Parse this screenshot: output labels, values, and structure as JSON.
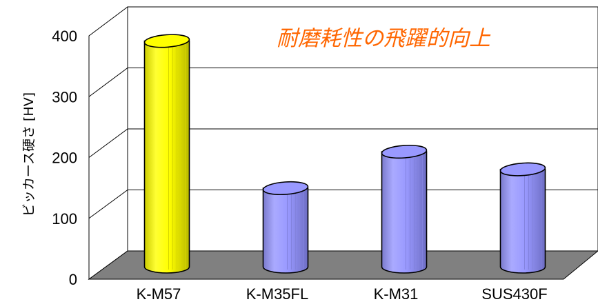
{
  "chart_data": {
    "type": "bar",
    "style": "3d-cylinder",
    "categories": [
      "K-M57",
      "K-M35FL",
      "K-M31",
      "SUS430F"
    ],
    "values": [
      378,
      136,
      196,
      167
    ],
    "xlabel": "",
    "ylabel": "ビッカース硬さ [HV]",
    "ylim": [
      0,
      400
    ],
    "yticks": [
      0,
      100,
      200,
      300,
      400
    ],
    "grid": true,
    "annotations": [
      {
        "text": "耐磨耗性の飛躍的向上",
        "color": "#ff6600"
      }
    ],
    "colors": {
      "highlight": "#ffff00",
      "bar": "#9999ff",
      "floor": "#808080",
      "walls": "#ffffff"
    },
    "highlight_category": "K-M57"
  }
}
